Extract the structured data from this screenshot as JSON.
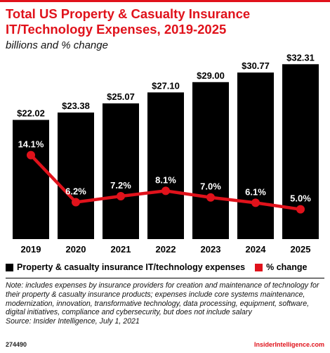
{
  "colors": {
    "accent": "#e0121b",
    "bar": "#000000",
    "line": "#e0121b"
  },
  "title": "Total US Property & Casualty Insurance IT/Technology Expenses, 2019-2025",
  "subtitle": "billions and % change",
  "chart_data": {
    "type": "bar",
    "categories": [
      "2019",
      "2020",
      "2021",
      "2022",
      "2023",
      "2024",
      "2025"
    ],
    "series": [
      {
        "name": "Property & casualty insurance IT/technology expenses",
        "type": "bar",
        "values": [
          22.02,
          23.38,
          25.07,
          27.1,
          29.0,
          30.77,
          32.31
        ],
        "labels": [
          "$22.02",
          "$23.38",
          "$25.07",
          "$27.10",
          "$29.00",
          "$30.77",
          "$32.31"
        ]
      },
      {
        "name": "% change",
        "type": "line",
        "values": [
          14.1,
          6.2,
          7.2,
          8.1,
          7.0,
          6.1,
          5.0
        ],
        "labels": [
          "14.1%",
          "6.2%",
          "7.2%",
          "8.1%",
          "7.0%",
          "6.1%",
          "5.0%"
        ]
      }
    ],
    "bar_ylim": [
      0,
      33
    ],
    "line_ylim": [
      0,
      30
    ],
    "legend_position": "bottom"
  },
  "legend": [
    {
      "label": "Property & casualty insurance IT/technology expenses",
      "color": "#000000"
    },
    {
      "label": "% change",
      "color": "#e0121b"
    }
  ],
  "note": "Note: includes expenses by insurance providers for creation and maintenance of technology for their property & casualty insurance products; expenses include core systems maintenance, modernization, innovation, transformative technology, data processing, equipment, software, digital initiatives, compliance and cybersecurity, but does not include salary",
  "source": "Source: Insider Intelligence, July 1, 2021",
  "footer": {
    "id": "274490",
    "brand": "InsiderIntelligence.com"
  }
}
